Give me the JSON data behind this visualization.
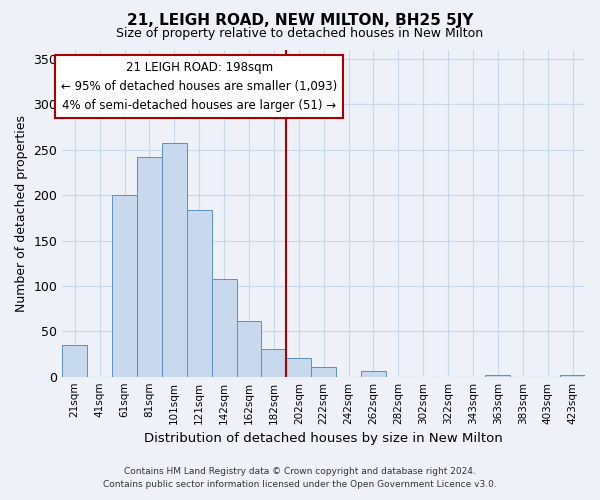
{
  "title": "21, LEIGH ROAD, NEW MILTON, BH25 5JY",
  "subtitle": "Size of property relative to detached houses in New Milton",
  "xlabel": "Distribution of detached houses by size in New Milton",
  "ylabel": "Number of detached properties",
  "bar_labels": [
    "21sqm",
    "41sqm",
    "61sqm",
    "81sqm",
    "101sqm",
    "121sqm",
    "142sqm",
    "162sqm",
    "182sqm",
    "202sqm",
    "222sqm",
    "242sqm",
    "262sqm",
    "282sqm",
    "302sqm",
    "322sqm",
    "343sqm",
    "363sqm",
    "383sqm",
    "403sqm",
    "423sqm"
  ],
  "bar_values": [
    35,
    0,
    200,
    242,
    258,
    184,
    108,
    61,
    31,
    21,
    11,
    0,
    6,
    0,
    0,
    0,
    0,
    2,
    0,
    0,
    2
  ],
  "bar_color": "#c8d8ed",
  "bar_edge_color": "#5b8ec9",
  "vline_x": 8.5,
  "vline_color": "#aa0000",
  "annotation_title": "21 LEIGH ROAD: 198sqm",
  "annotation_line1": "← 95% of detached houses are smaller (1,093)",
  "annotation_line2": "4% of semi-detached houses are larger (51) →",
  "annotation_box_edge_color": "#aa0000",
  "ylim": [
    0,
    360
  ],
  "yticks": [
    0,
    50,
    100,
    150,
    200,
    250,
    300,
    350
  ],
  "footer1": "Contains HM Land Registry data © Crown copyright and database right 2024.",
  "footer2": "Contains public sector information licensed under the Open Government Licence v3.0.",
  "grid_color": "#c8d8ed",
  "background_color": "#eef2f8"
}
